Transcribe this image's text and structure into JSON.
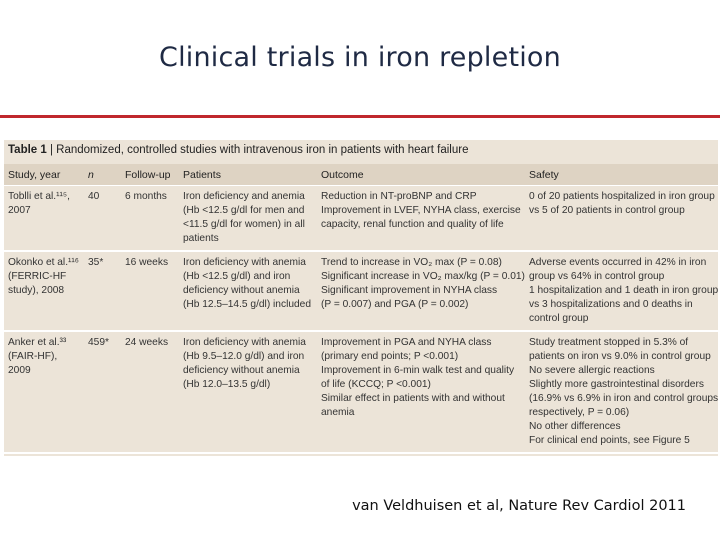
{
  "slide": {
    "title": "Clinical trials in iron repletion",
    "citation": "van Veldhuisen et al, Nature Rev Cardiol 2011"
  },
  "table": {
    "caption_label": "Table 1",
    "caption_text": " | Randomized, controlled studies with intravenous iron in patients with heart failure",
    "headers": [
      "Study, year",
      "n",
      "Follow-up",
      "Patients",
      "Outcome",
      "Safety"
    ],
    "rows": [
      {
        "study": [
          "Toblli et al.¹¹⁵,",
          "2007"
        ],
        "n": "40",
        "followup": "6 months",
        "patients": [
          "Iron deficiency and anemia",
          "(Hb <12.5 g/dl for men and",
          "<11.5 g/dl for women) in all",
          "patients"
        ],
        "outcome": [
          "Reduction in NT-proBNP and CRP",
          "Improvement in LVEF, NYHA class, exercise",
          "capacity, renal function and quality of life"
        ],
        "safety": [
          "0 of 20 patients hospitalized in iron group",
          "vs 5 of 20 patients in control group"
        ]
      },
      {
        "study": [
          "Okonko et al.¹¹⁶",
          "(FERRIC-HF",
          "study), 2008"
        ],
        "n": "35*",
        "followup": "16 weeks",
        "patients": [
          "Iron deficiency with anemia",
          "(Hb <12.5 g/dl) and iron",
          "deficiency without anemia",
          "(Hb 12.5–14.5 g/dl) included"
        ],
        "outcome": [
          "Trend to increase in VO₂ max (P = 0.08)",
          "Significant increase in VO₂ max/kg (P = 0.01)",
          "Significant improvement in NYHA class",
          "(P = 0.007) and PGA (P = 0.002)"
        ],
        "safety": [
          "Adverse events occurred in 42% in iron",
          "group vs 64% in control group",
          "1 hospitalization and 1 death in iron group",
          "vs 3 hospitalizations and 0 deaths in",
          "control group"
        ]
      },
      {
        "study": [
          "Anker et al.³³",
          "(FAIR-HF),",
          "2009"
        ],
        "n": "459*",
        "followup": "24 weeks",
        "patients": [
          "Iron deficiency with anemia",
          "(Hb 9.5–12.0 g/dl) and iron",
          "deficiency without anemia",
          "(Hb 12.0–13.5 g/dl)"
        ],
        "outcome": [
          "Improvement in PGA and NYHA class",
          "(primary end points; P <0.001)",
          "Improvement in 6-min walk test and quality",
          "of life (KCCQ; P <0.001)",
          "Similar effect in patients with and without",
          "anemia"
        ],
        "safety": [
          "Study treatment stopped in 5.3% of",
          "patients on iron vs 9.0% in control group",
          "No severe allergic reactions",
          "Slightly more gastrointestinal disorders",
          "(16.9% vs 6.9% in iron and control groups,",
          "respectively, P = 0.06)",
          "No other differences",
          "For clinical end points, see Figure 5"
        ]
      }
    ]
  }
}
